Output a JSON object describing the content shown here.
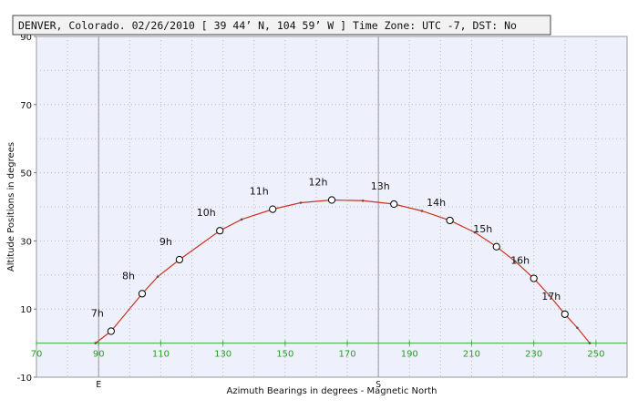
{
  "chart_data": {
    "type": "line",
    "title": "DENVER, Colorado. 02/26/2010 [ 39 44’ N, 104 59’ W ] Time Zone: UTC -7, DST: No",
    "xlabel": "Azimuth Bearings in degrees - Magnetic North",
    "ylabel": "Altitude Positions in degrees",
    "xlim": [
      70,
      260
    ],
    "ylim": [
      -10,
      90
    ],
    "x_ticks": [
      "70",
      "90",
      "110",
      "130",
      "150",
      "170",
      "190",
      "210",
      "230",
      "250"
    ],
    "y_ticks": [
      "90",
      "70",
      "50",
      "30",
      "10",
      "-10"
    ],
    "cardinal_markers": [
      {
        "label": "E",
        "azimuth": 90
      },
      {
        "label": "S",
        "azimuth": 180
      }
    ],
    "grid": true,
    "series": [
      {
        "hourly_points": [
          {
            "label": "7h",
            "azimuth": 94,
            "altitude": 3.5
          },
          {
            "label": "8h",
            "azimuth": 104,
            "altitude": 14.5
          },
          {
            "label": "9h",
            "azimuth": 116,
            "altitude": 24.5
          },
          {
            "label": "10h",
            "azimuth": 129,
            "altitude": 33
          },
          {
            "label": "11h",
            "azimuth": 146,
            "altitude": 39.3
          },
          {
            "label": "12h",
            "azimuth": 165,
            "altitude": 42
          },
          {
            "label": "13h",
            "azimuth": 185,
            "altitude": 40.8
          },
          {
            "label": "14h",
            "azimuth": 203,
            "altitude": 36
          },
          {
            "label": "15h",
            "azimuth": 218,
            "altitude": 28.3
          },
          {
            "label": "16h",
            "azimuth": 230,
            "altitude": 19
          },
          {
            "label": "17h",
            "azimuth": 240,
            "altitude": 8.5
          }
        ],
        "path": [
          {
            "azimuth": 89,
            "altitude": 0
          },
          {
            "azimuth": 94,
            "altitude": 3.5
          },
          {
            "azimuth": 104,
            "altitude": 14.5
          },
          {
            "azimuth": 109,
            "altitude": 19.5
          },
          {
            "azimuth": 116,
            "altitude": 24.5
          },
          {
            "azimuth": 129,
            "altitude": 33
          },
          {
            "azimuth": 136,
            "altitude": 36.3
          },
          {
            "azimuth": 146,
            "altitude": 39.3
          },
          {
            "azimuth": 155,
            "altitude": 41.2
          },
          {
            "azimuth": 165,
            "altitude": 42
          },
          {
            "azimuth": 175,
            "altitude": 41.8
          },
          {
            "azimuth": 185,
            "altitude": 40.8
          },
          {
            "azimuth": 194,
            "altitude": 38.8
          },
          {
            "azimuth": 203,
            "altitude": 36
          },
          {
            "azimuth": 211,
            "altitude": 32.5
          },
          {
            "azimuth": 218,
            "altitude": 28.3
          },
          {
            "azimuth": 224,
            "altitude": 24
          },
          {
            "azimuth": 230,
            "altitude": 19
          },
          {
            "azimuth": 235,
            "altitude": 14
          },
          {
            "azimuth": 240,
            "altitude": 8.5
          },
          {
            "azimuth": 244,
            "altitude": 4.5
          },
          {
            "azimuth": 248,
            "altitude": 0
          }
        ]
      }
    ],
    "colors": {
      "plot_background": "#eef0fb",
      "grid": "#b8b8c8",
      "vertical_reference": "#9a9a9a",
      "horizon_axis": "#3fae3f",
      "x_tick_labels": "#2b9a2b",
      "sun_path": "#cc3322",
      "path_dots": "#555555",
      "markers": "#000000",
      "title_background": "#f2f2f2"
    }
  }
}
